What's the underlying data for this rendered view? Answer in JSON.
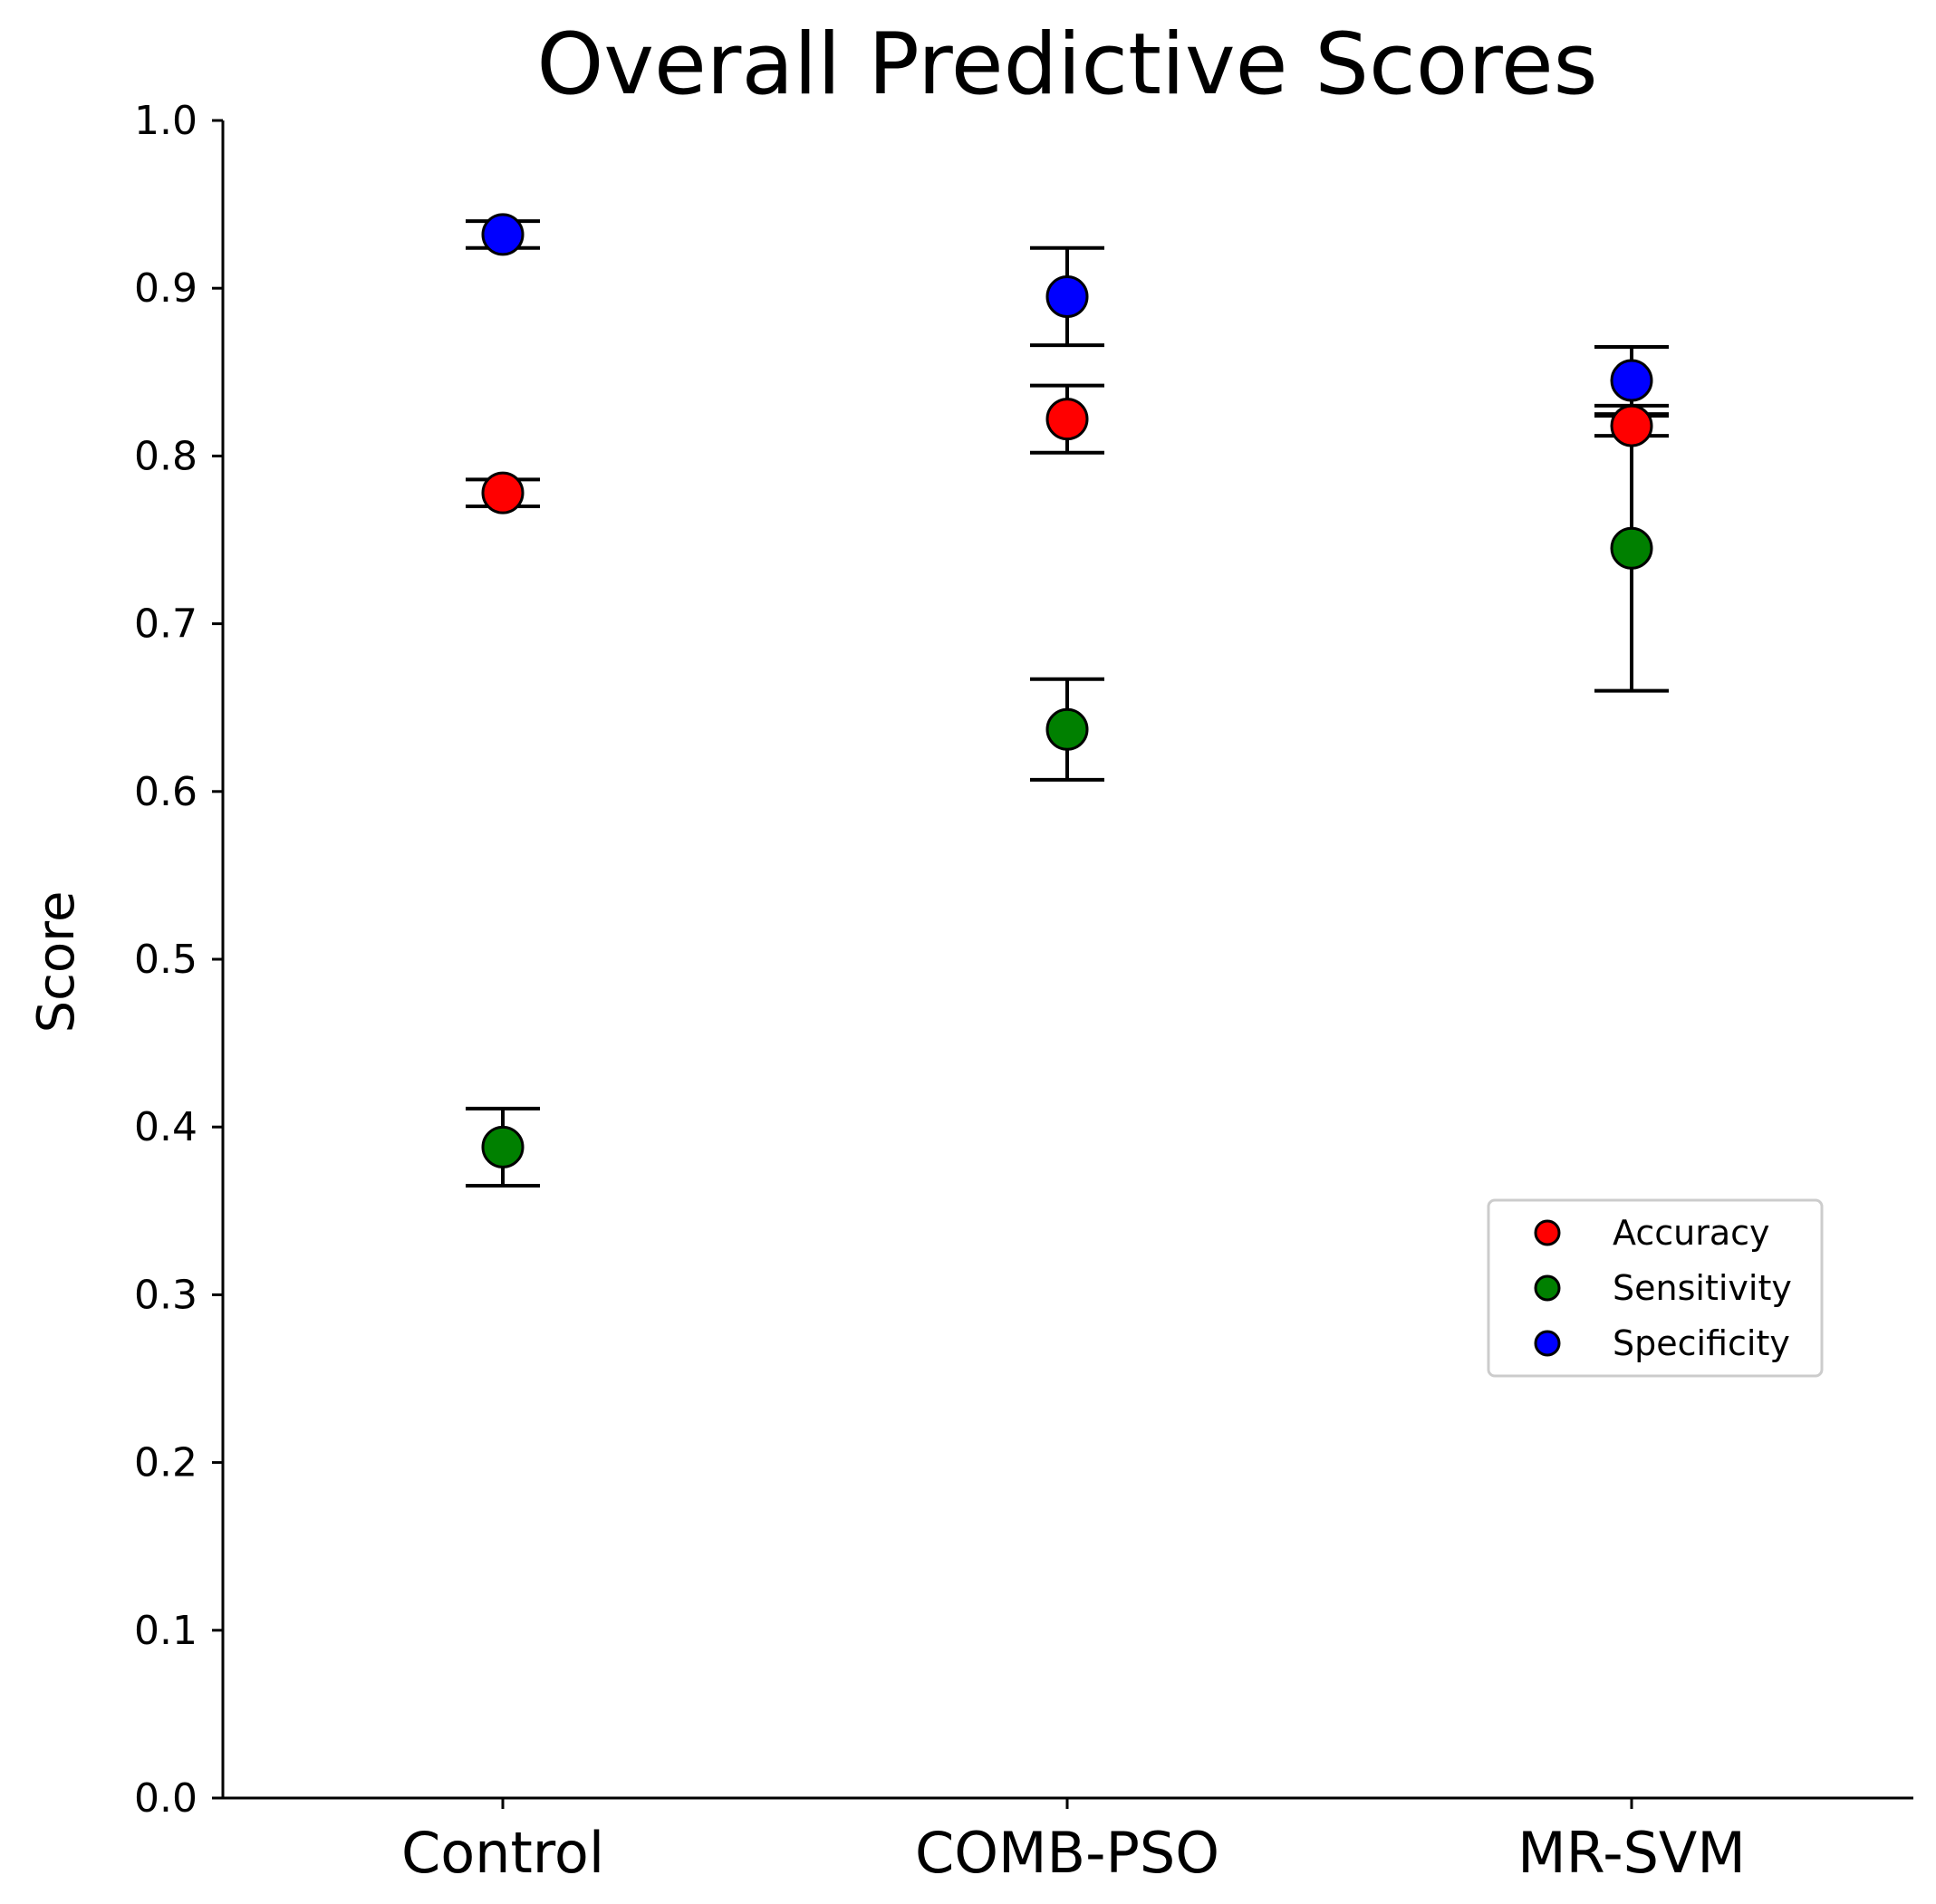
{
  "chart_data": {
    "type": "scatter",
    "title": "Overall Predictive Scores",
    "xlabel": "",
    "ylabel": "Score",
    "ylim": [
      0.0,
      1.0
    ],
    "yticks": [
      "0.0",
      "0.1",
      "0.2",
      "0.3",
      "0.4",
      "0.5",
      "0.6",
      "0.7",
      "0.8",
      "0.9",
      "1.0"
    ],
    "categories": [
      "Control",
      "COMB-PSO",
      "MR-SVM"
    ],
    "grid": false,
    "legend_position": "center-right",
    "series": [
      {
        "name": "Accuracy",
        "color": "#ff0000",
        "values": [
          0.778,
          0.822,
          0.818
        ],
        "errors": [
          0.008,
          0.02,
          0.006
        ]
      },
      {
        "name": "Sensitivity",
        "color": "#008000",
        "values": [
          0.388,
          0.637,
          0.745
        ],
        "errors": [
          0.023,
          0.03,
          0.085
        ]
      },
      {
        "name": "Specificity",
        "color": "#0000ff",
        "values": [
          0.932,
          0.895,
          0.845
        ],
        "errors": [
          0.008,
          0.029,
          0.02
        ]
      }
    ]
  }
}
